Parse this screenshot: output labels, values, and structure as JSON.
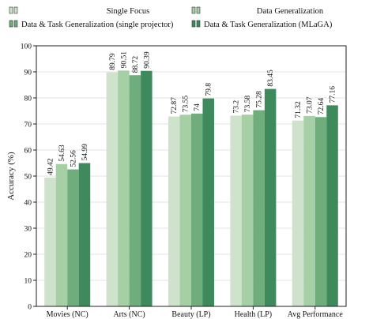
{
  "chart_data": {
    "type": "bar",
    "title": "",
    "xlabel": "",
    "ylabel": "Accuracy (%)",
    "ylim": [
      0,
      100
    ],
    "yticks": [
      0,
      10,
      20,
      30,
      40,
      50,
      60,
      70,
      80,
      90,
      100
    ],
    "grid": true,
    "legend_position": "top",
    "categories": [
      "Movies (NC)",
      "Arts (NC)",
      "Beauty (LP)",
      "Health (LP)",
      "Avg Performance"
    ],
    "series": [
      {
        "name": "Single Focus",
        "color": "#cfe3cc",
        "values": [
          49.42,
          89.79,
          72.87,
          73.2,
          71.32
        ],
        "labels": [
          "49.42",
          "89.79",
          "72.87",
          "73.2",
          "71.32"
        ]
      },
      {
        "name": "Data Generalization",
        "color": "#a6cfa6",
        "values": [
          54.63,
          90.51,
          73.55,
          73.58,
          73.07
        ],
        "labels": [
          "54.63",
          "90.51",
          "73.55",
          "73.58",
          "73.07"
        ]
      },
      {
        "name": "Data & Task Generalization (single projector)",
        "color": "#6fad7c",
        "values": [
          52.56,
          88.72,
          74,
          75.28,
          72.64
        ],
        "labels": [
          "52.56",
          "88.72",
          "74",
          "75.28",
          "72.64"
        ]
      },
      {
        "name": "Data & Task Generalization (MLaGA)",
        "color": "#3e8a5c",
        "values": [
          54.99,
          90.39,
          79.8,
          83.45,
          77.16
        ],
        "labels": [
          "54.99",
          "90.39",
          "79.8",
          "83.45",
          "77.16"
        ]
      }
    ]
  }
}
